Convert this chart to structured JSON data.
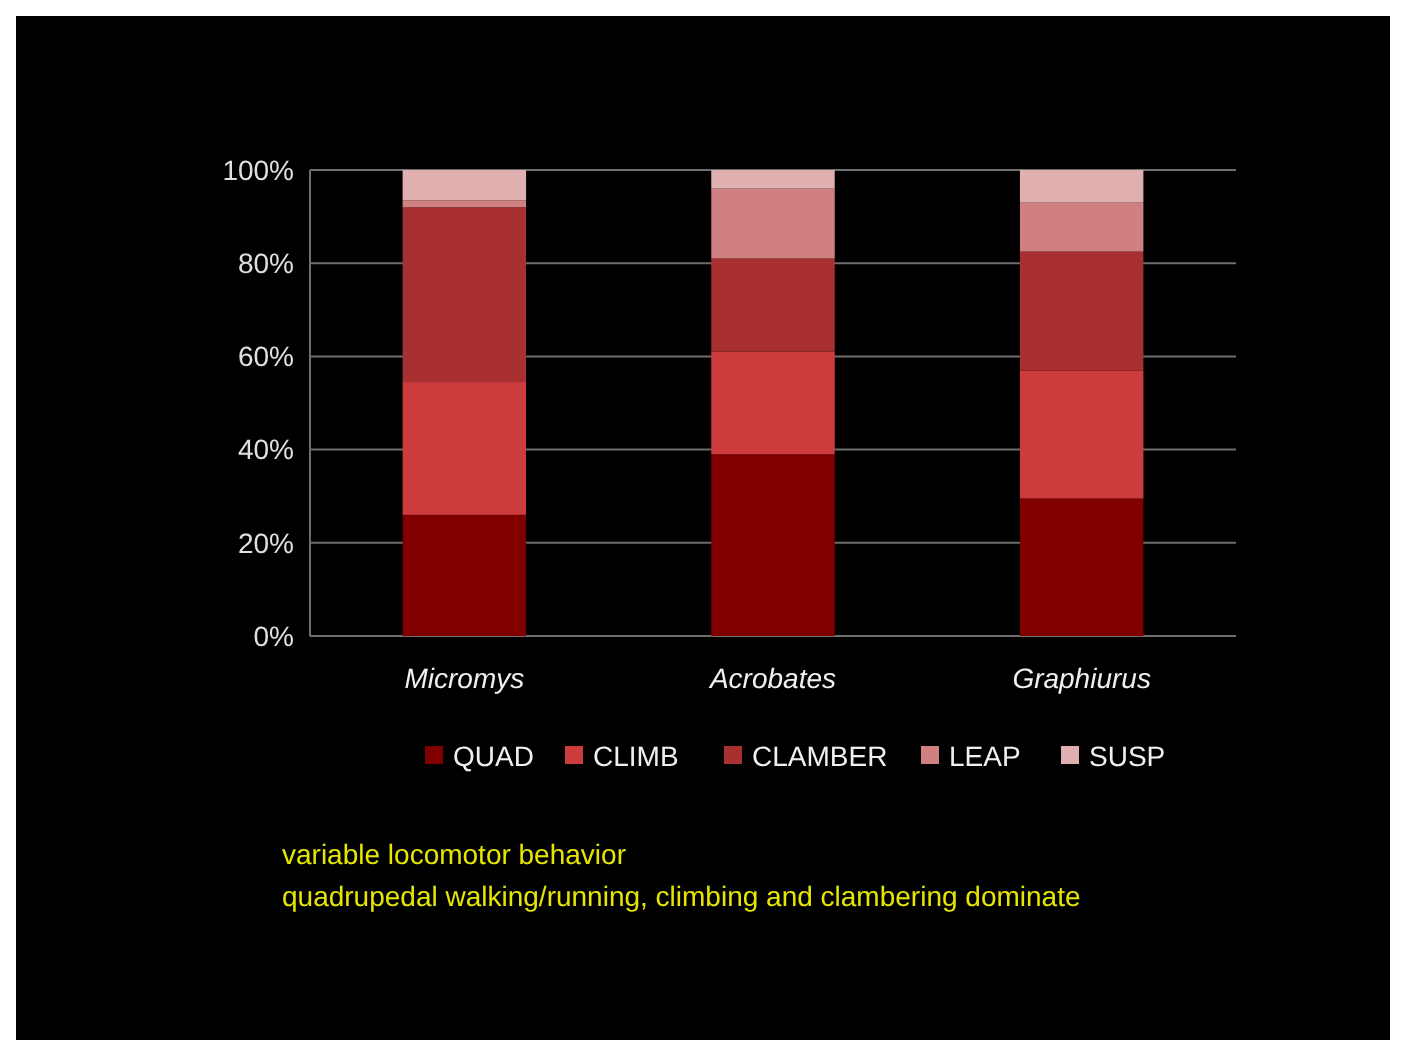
{
  "chart_data": {
    "type": "bar",
    "stacked": true,
    "categories": [
      "Micromys",
      "Acrobates",
      "Graphiurus"
    ],
    "series": [
      {
        "name": "QUAD",
        "color": "#800000",
        "values": [
          26,
          39,
          29.5
        ]
      },
      {
        "name": "CLIMB",
        "color": "#cc3c3c",
        "values": [
          28.5,
          22,
          27.5
        ]
      },
      {
        "name": "CLAMBER",
        "color": "#a83030",
        "values": [
          37.5,
          20,
          25.5
        ]
      },
      {
        "name": "LEAP",
        "color": "#d08080",
        "values": [
          1.5,
          15,
          10.5
        ]
      },
      {
        "name": "SUSP",
        "color": "#e0b0b0",
        "values": [
          6.5,
          4,
          7
        ]
      }
    ],
    "ylim": [
      0,
      100
    ],
    "yticks": [
      {
        "value": 0,
        "label": "0%"
      },
      {
        "value": 20,
        "label": "20%"
      },
      {
        "value": 40,
        "label": "40%"
      },
      {
        "value": 60,
        "label": "60%"
      },
      {
        "value": 80,
        "label": "80%"
      },
      {
        "value": 100,
        "label": "100%"
      }
    ],
    "grid": "y",
    "legend": "bottom",
    "annotations": [
      "variable locomotor behavior",
      "quadrupedal walking/running, climbing and clambering dominate"
    ]
  }
}
